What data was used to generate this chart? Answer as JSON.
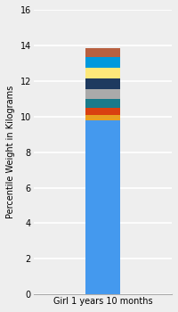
{
  "category": "Girl 1 years 10 months",
  "ylabel": "Percentile Weight in Kilograms",
  "ylim": [
    0,
    16
  ],
  "yticks": [
    0,
    2,
    4,
    6,
    8,
    10,
    12,
    14,
    16
  ],
  "background_color": "#eeeeee",
  "segments": [
    {
      "value": 9.8,
      "color": "#4499ee"
    },
    {
      "value": 0.3,
      "color": "#e8a020"
    },
    {
      "value": 0.4,
      "color": "#d94010"
    },
    {
      "value": 0.5,
      "color": "#1a7a8a"
    },
    {
      "value": 0.55,
      "color": "#aaaaaa"
    },
    {
      "value": 0.6,
      "color": "#1e3a5f"
    },
    {
      "value": 0.6,
      "color": "#fde87a"
    },
    {
      "value": 0.6,
      "color": "#0099dd"
    },
    {
      "value": 0.5,
      "color": "#b86040"
    }
  ],
  "bar_width": 0.35,
  "ylabel_fontsize": 7,
  "tick_fontsize": 7,
  "xlabel_fontsize": 7
}
